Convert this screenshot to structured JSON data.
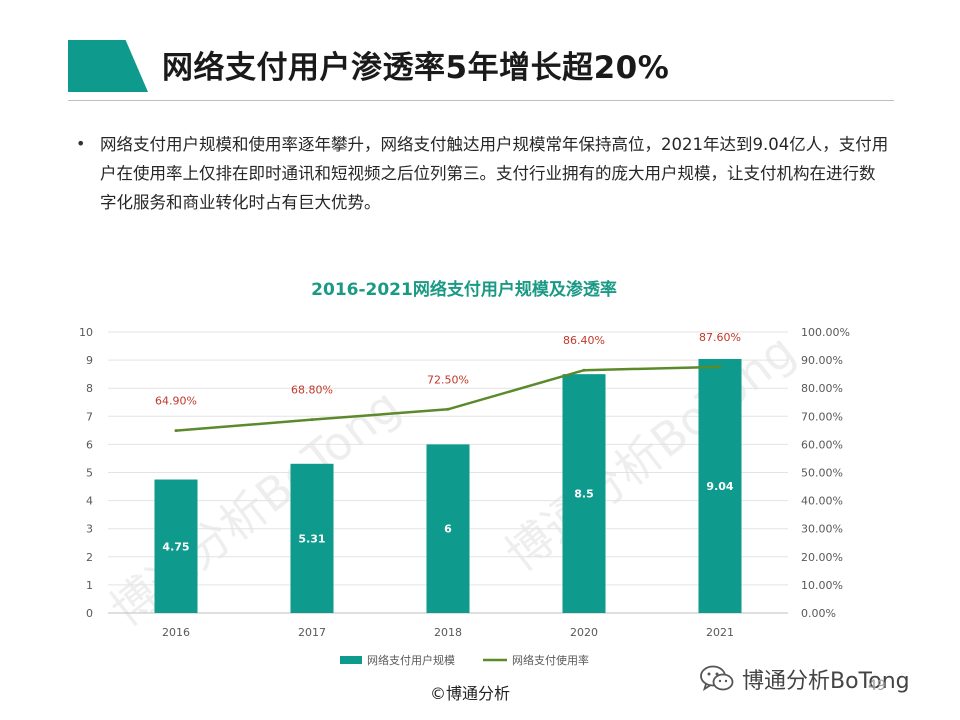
{
  "header": {
    "title": "网络支付用户渗透率5年增长超20%"
  },
  "bullet": {
    "text": "网络支付用户规模和使用率逐年攀升，网络支付触达用户规模常年保持高位，2021年达到9.04亿人，支付用户在使用率上仅排在即时通讯和短视频之后位列第三。支付行业拥有的庞大用户规模，让支付机构在进行数字化服务和商业转化时占有巨大优势。"
  },
  "chart_data": {
    "type": "bar",
    "title": "2016-2021网络支付用户规模及渗透率",
    "categories": [
      "2016",
      "2017",
      "2018",
      "2020",
      "2021"
    ],
    "series": [
      {
        "name": "网络支付用户规模",
        "type": "bar",
        "axis": "left",
        "values": [
          4.75,
          5.31,
          6,
          8.5,
          9.04
        ],
        "labels": [
          "4.75",
          "5.31",
          "6",
          "8.5",
          "9.04"
        ],
        "color": "#0e9a8c"
      },
      {
        "name": "网络支付使用率",
        "type": "line",
        "axis": "right",
        "values": [
          64.9,
          68.8,
          72.5,
          86.4,
          87.6
        ],
        "labels": [
          "64.90%",
          "68.80%",
          "72.50%",
          "86.40%",
          "87.60%"
        ],
        "color": "#5a8a2a"
      }
    ],
    "y_left": {
      "min": 0,
      "max": 10,
      "ticks": [
        "0",
        "1",
        "2",
        "3",
        "4",
        "5",
        "6",
        "7",
        "8",
        "9",
        "10"
      ]
    },
    "y_right": {
      "min": 0,
      "max": 100,
      "ticks": [
        "0.00%",
        "10.00%",
        "20.00%",
        "30.00%",
        "40.00%",
        "50.00%",
        "60.00%",
        "70.00%",
        "80.00%",
        "90.00%",
        "100.00%"
      ]
    },
    "title_color": "#1a9a84",
    "point_label_color": "#c0392b",
    "gridlines": true,
    "legend_position": "bottom"
  },
  "watermark": {
    "text": "博通分析BoTong"
  },
  "footer": {
    "copyright": "©博通分析",
    "brand": "博通分析BoTong",
    "page": "49"
  }
}
